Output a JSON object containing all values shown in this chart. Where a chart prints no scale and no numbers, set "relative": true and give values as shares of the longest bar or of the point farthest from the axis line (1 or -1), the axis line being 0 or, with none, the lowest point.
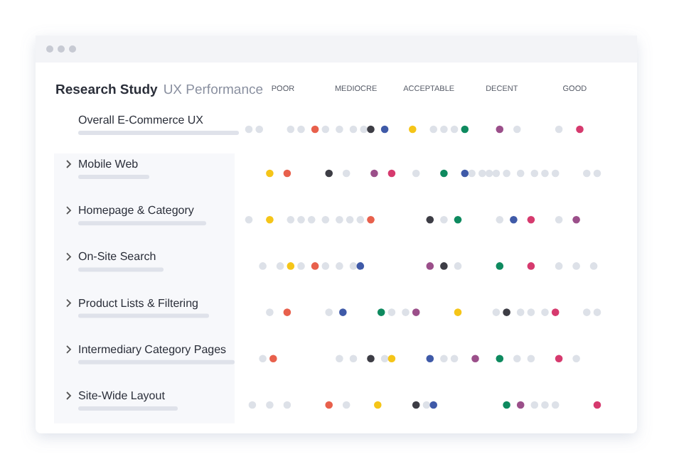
{
  "chart_data": {
    "type": "scatter",
    "orientation": "horizontal",
    "relative": true,
    "title": "Research Study",
    "subtitle": "UX Performance",
    "categories": [
      "Overall E-Commerce UX",
      "Mobile Web",
      "Homepage & Category",
      "On-Site Search",
      "Product Lists & Filtering",
      "Intermediary Category Pages",
      "Site-Wide Layout"
    ],
    "annotations": [
      "POOR",
      "MEDIOCRE",
      "ACCEPTABLE",
      "DECENT",
      "GOOD"
    ],
    "grid": false,
    "marker": "circle",
    "series": [
      {
        "color": "#dde1e8",
        "values": [
          0,
          0.28,
          0,
          0.04,
          0.06,
          0.04,
          0.01
        ]
      },
      {
        "color": "#dde1e8",
        "values": [
          0.03,
          0.48,
          0.12,
          0.09,
          0.23,
          0.26,
          0.06
        ]
      },
      {
        "color": "#dde1e8",
        "values": [
          0.12,
          0.64,
          0.15,
          0.15,
          0.41,
          0.3,
          0.11
        ]
      },
      {
        "color": "#dde1e8",
        "values": [
          0.15,
          0.67,
          0.18,
          0.22,
          0.45,
          0.39,
          0.28
        ]
      },
      {
        "color": "#dde1e8",
        "values": [
          0.22,
          0.69,
          0.22,
          0.26,
          0.71,
          0.56,
          0.51
        ]
      },
      {
        "color": "#dde1e8",
        "values": [
          0.26,
          0.71,
          0.26,
          0.3,
          0.78,
          0.59,
          0.82
        ]
      },
      {
        "color": "#dde1e8",
        "values": [
          0.3,
          0.74,
          0.29,
          0.6,
          0.81,
          0.77,
          0.85
        ]
      },
      {
        "color": "#dde1e8",
        "values": [
          0.33,
          0.78,
          0.32,
          0.89,
          0.85,
          0.81,
          0.88
        ]
      },
      {
        "color": "#dde1e8",
        "values": [
          0.53,
          0.82,
          0.56,
          0.94,
          0.97,
          0.94,
          null
        ]
      },
      {
        "color": "#dde1e8",
        "values": [
          0.56,
          0.85,
          0.72,
          0.99,
          1,
          null,
          null
        ]
      },
      {
        "color": "#dde1e8",
        "values": [
          0.59,
          0.88,
          0.89,
          null,
          null,
          null,
          null
        ]
      },
      {
        "color": "#dde1e8",
        "values": [
          0.77,
          0.97,
          null,
          null,
          null,
          null,
          null
        ]
      },
      {
        "color": "#dde1e8",
        "values": [
          0.89,
          1,
          null,
          null,
          null,
          null,
          null
        ]
      },
      {
        "color": "#f5c518",
        "values": [
          0.47,
          0.06,
          0.06,
          0.12,
          0.6,
          0.41,
          0.37
        ]
      },
      {
        "color": "#e8604c",
        "values": [
          0.19,
          0.11,
          0.35,
          0.19,
          0.11,
          0.07,
          0.23
        ]
      },
      {
        "color": "#3d3d45",
        "values": [
          0.35,
          0.23,
          0.52,
          0.56,
          0.74,
          0.35,
          0.48
        ]
      },
      {
        "color": "#3f5aa8",
        "values": [
          0.39,
          0.62,
          0.76,
          0.32,
          0.27,
          0.52,
          0.53
        ]
      },
      {
        "color": "#9b4f8a",
        "values": [
          0.72,
          0.36,
          0.94,
          0.52,
          0.48,
          0.65,
          0.78
        ]
      },
      {
        "color": "#0e8a5f",
        "values": [
          0.62,
          0.56,
          0.6,
          0.72,
          0.38,
          0.72,
          0.74
        ]
      },
      {
        "color": "#d63a6e",
        "values": [
          0.95,
          0.41,
          0.81,
          0.81,
          0.88,
          0.89,
          1
        ]
      }
    ]
  }
}
